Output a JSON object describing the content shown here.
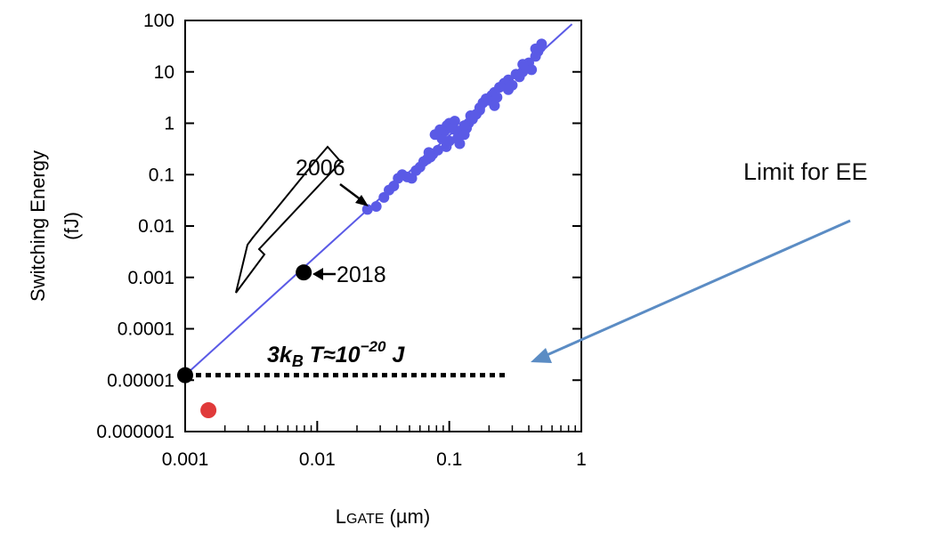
{
  "chart_data": {
    "type": "scatter",
    "xscale": "log",
    "yscale": "log",
    "xlim": [
      0.001,
      1
    ],
    "ylim": [
      1e-06,
      100
    ],
    "xlabel": "LGATE (µm)",
    "ylabel": "Switching Energy",
    "ylabel_unit": "(fJ)",
    "xtick_labels": [
      "0.001",
      "0.01",
      "0.1",
      "1"
    ],
    "ytick_labels": [
      "100",
      "10",
      "1",
      "0.1",
      "0.01",
      "0.001",
      "0.0001",
      "0.00001",
      "0.000001"
    ],
    "grid": false,
    "trend_line": {
      "x": [
        0.001,
        0.85
      ],
      "y": [
        1.25e-05,
        85
      ],
      "color": "#5a5ae6"
    },
    "points_color": "#5a5ae6",
    "points": [
      [
        0.024,
        0.021
      ],
      [
        0.028,
        0.024
      ],
      [
        0.032,
        0.036
      ],
      [
        0.035,
        0.05
      ],
      [
        0.038,
        0.06
      ],
      [
        0.041,
        0.085
      ],
      [
        0.044,
        0.1
      ],
      [
        0.048,
        0.09
      ],
      [
        0.052,
        0.085
      ],
      [
        0.056,
        0.12
      ],
      [
        0.06,
        0.14
      ],
      [
        0.064,
        0.18
      ],
      [
        0.068,
        0.2
      ],
      [
        0.072,
        0.22
      ],
      [
        0.075,
        0.25
      ],
      [
        0.078,
        0.6
      ],
      [
        0.082,
        0.3
      ],
      [
        0.088,
        0.5
      ],
      [
        0.092,
        0.7
      ],
      [
        0.096,
        0.9
      ],
      [
        0.1,
        1.0
      ],
      [
        0.105,
        0.8
      ],
      [
        0.11,
        1.1
      ],
      [
        0.115,
        0.5
      ],
      [
        0.12,
        0.4
      ],
      [
        0.125,
        0.7
      ],
      [
        0.13,
        0.6
      ],
      [
        0.135,
        0.8
      ],
      [
        0.14,
        1.0
      ],
      [
        0.145,
        1.4
      ],
      [
        0.15,
        1.2
      ],
      [
        0.16,
        1.5
      ],
      [
        0.17,
        2.0
      ],
      [
        0.18,
        2.5
      ],
      [
        0.19,
        3.0
      ],
      [
        0.2,
        2.8
      ],
      [
        0.21,
        3.5
      ],
      [
        0.22,
        4.0
      ],
      [
        0.23,
        3.2
      ],
      [
        0.24,
        5.0
      ],
      [
        0.26,
        6.0
      ],
      [
        0.28,
        7.0
      ],
      [
        0.3,
        5.5
      ],
      [
        0.32,
        9.0
      ],
      [
        0.34,
        8.0
      ],
      [
        0.36,
        10.0
      ],
      [
        0.38,
        12.0
      ],
      [
        0.4,
        15.0
      ],
      [
        0.42,
        11.0
      ],
      [
        0.45,
        20.0
      ],
      [
        0.47,
        25.0
      ],
      [
        0.49,
        30.0
      ],
      [
        0.5,
        35.0
      ],
      [
        0.45,
        28.0
      ],
      [
        0.36,
        14.0
      ],
      [
        0.28,
        4.5
      ],
      [
        0.22,
        2.2
      ],
      [
        0.17,
        1.8
      ],
      [
        0.13,
        0.9
      ],
      [
        0.095,
        0.35
      ],
      [
        0.085,
        0.75
      ],
      [
        0.07,
        0.27
      ],
      [
        0.1,
        0.45
      ],
      [
        0.11,
        0.75
      ]
    ],
    "highlight_points": [
      {
        "x": 0.0079,
        "y": 0.00125,
        "color": "#000000",
        "label": "2018"
      },
      {
        "x": 0.001,
        "y": 1.25e-05,
        "color": "#000000"
      },
      {
        "x": 0.0015,
        "y": 2.6e-06,
        "color": "#e03a3a"
      }
    ],
    "annotation_2006": {
      "label": "2006",
      "x": 0.024,
      "y": 0.021
    },
    "limit_line": {
      "y": 1.25e-05,
      "x_from": 0.001,
      "x_to": 0.27,
      "style": "dotted"
    },
    "limit_label": {
      "prefix": "3k",
      "sub": "B",
      "middle": " T≈10",
      "sup": "−20",
      "suffix": " J"
    }
  },
  "callout": {
    "text": "Limit for EE",
    "arrow_color": "#5b8cc4"
  }
}
